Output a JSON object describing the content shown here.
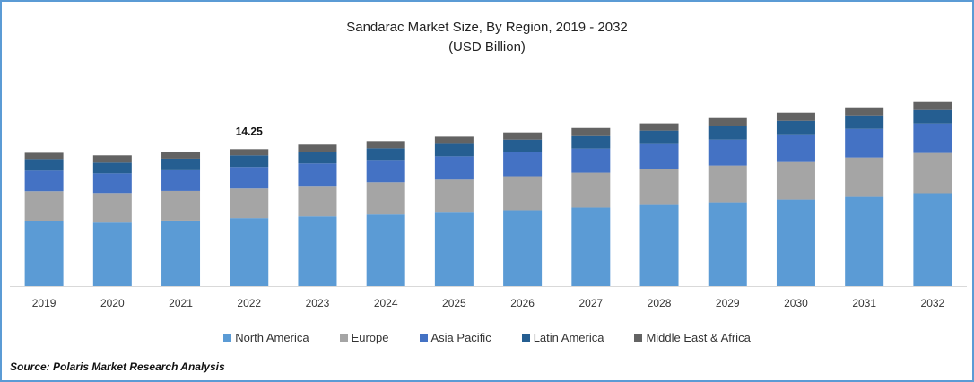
{
  "chart_data": {
    "type": "bar",
    "stacked": true,
    "title": "Sandarac Market Size, By Region, 2019 - 2032",
    "subtitle": "(USD Billion)",
    "xlabel": "",
    "ylabel": "",
    "ylim": [
      0,
      21
    ],
    "grid": false,
    "legend_position": "bottom",
    "categories": [
      "2019",
      "2020",
      "2021",
      "2022",
      "2023",
      "2024",
      "2025",
      "2026",
      "2027",
      "2028",
      "2029",
      "2030",
      "2031",
      "2032"
    ],
    "series": [
      {
        "name": "North America",
        "color": "#5b9bd5",
        "values": [
          6.8,
          6.61,
          6.82,
          7.08,
          7.26,
          7.45,
          7.73,
          7.89,
          8.17,
          8.44,
          8.72,
          9.0,
          9.28,
          9.66
        ]
      },
      {
        "name": "Europe",
        "color": "#a5a5a5",
        "values": [
          3.07,
          3.07,
          3.08,
          3.07,
          3.17,
          3.35,
          3.35,
          3.54,
          3.63,
          3.73,
          3.82,
          3.91,
          4.1,
          4.19
        ]
      },
      {
        "name": "Asia Pacific",
        "color": "#4472c4",
        "values": [
          2.14,
          2.05,
          2.15,
          2.24,
          2.33,
          2.33,
          2.42,
          2.51,
          2.51,
          2.61,
          2.7,
          2.89,
          2.98,
          3.07
        ]
      },
      {
        "name": "Latin America",
        "color": "#255e91",
        "values": [
          1.21,
          1.12,
          1.21,
          1.21,
          1.21,
          1.21,
          1.3,
          1.3,
          1.3,
          1.4,
          1.4,
          1.4,
          1.4,
          1.4
        ]
      },
      {
        "name": "Middle East & Africa",
        "color": "#636363",
        "values": [
          0.65,
          0.75,
          0.66,
          0.65,
          0.75,
          0.75,
          0.75,
          0.75,
          0.84,
          0.75,
          0.84,
          0.84,
          0.84,
          0.84
        ]
      }
    ],
    "annotations": [
      {
        "category": "2022",
        "text": "14.25"
      }
    ]
  },
  "source": "Source: Polaris  Market Research Analysis"
}
